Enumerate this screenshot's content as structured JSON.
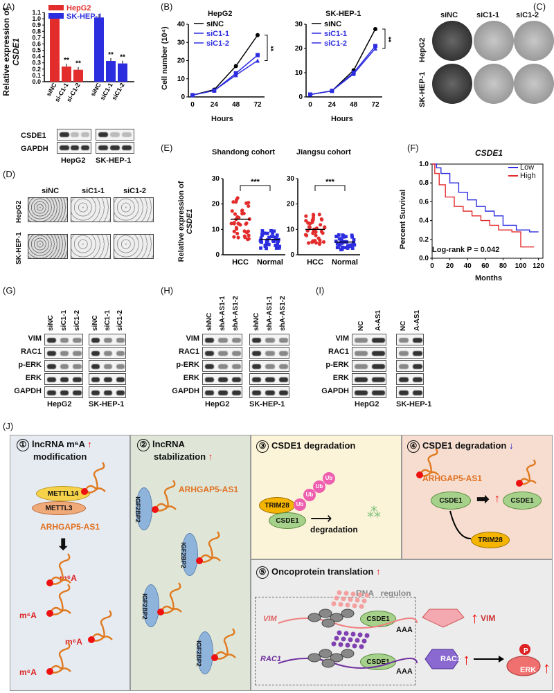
{
  "panelA": {
    "label": "(A)",
    "ylabel1": "Relative expression of",
    "ylabel2": "CSDE1",
    "legend": [
      {
        "name": "HepG2",
        "color": "#e32c2c"
      },
      {
        "name": "SK-HEP-1",
        "color": "#2d2de0"
      }
    ],
    "yticks": [
      "0.0",
      "0.1",
      "0.2",
      "0.3",
      "0.4",
      "0.5",
      "0.6",
      "0.7",
      "0.8",
      "0.9",
      "1.0",
      "1.1"
    ],
    "xlabels": [
      "siNC",
      "si-C1-1",
      "si-C1-2",
      "siNC",
      "siC1-1",
      "siC1-2"
    ],
    "sig": "**",
    "blot_rows": [
      "CSDE1",
      "GAPDH"
    ],
    "blot_groups": [
      "HepG2",
      "SK-HEP-1"
    ]
  },
  "chart_data": [
    {
      "type": "bar",
      "categories": [
        "siNC",
        "si-C1-1",
        "si-C1-2",
        "siNC",
        "siC1-1",
        "siC1-2"
      ],
      "series": [
        {
          "name": "HepG2",
          "values": [
            1.03,
            0.24,
            0.19,
            null,
            null,
            null
          ]
        },
        {
          "name": "SK-HEP-1",
          "values": [
            null,
            null,
            null,
            1.02,
            0.33,
            0.29
          ]
        }
      ],
      "ylim": [
        0,
        1.1
      ]
    },
    {
      "type": "line",
      "title": "HepG2",
      "xlabel": "Hours",
      "ylabel": "Cell number (10⁴)",
      "x": [
        0,
        24,
        48,
        72
      ],
      "series": [
        {
          "name": "siNC",
          "values": [
            1,
            4,
            17,
            34
          ]
        },
        {
          "name": "siC1-1",
          "values": [
            1,
            3.5,
            13,
            23
          ]
        },
        {
          "name": "siC1-2",
          "values": [
            1,
            3.5,
            12,
            20
          ]
        }
      ],
      "ylim": [
        0,
        40
      ]
    },
    {
      "type": "line",
      "title": "SK-HEP-1",
      "xlabel": "Hours",
      "x": [
        0,
        24,
        48,
        72
      ],
      "series": [
        {
          "name": "siNC",
          "values": [
            1,
            2.5,
            11,
            28
          ]
        },
        {
          "name": "siC1-1",
          "values": [
            1,
            2.5,
            10,
            21
          ]
        },
        {
          "name": "siC1-2",
          "values": [
            1,
            2.5,
            9.5,
            20
          ]
        }
      ],
      "ylim": [
        0,
        30
      ]
    },
    {
      "type": "scatter",
      "title": "Shandong cohort",
      "ylabel": "Relative expression of CSDE1",
      "categories": [
        "HCC",
        "Normal"
      ],
      "series": [
        {
          "name": "HCC",
          "values": [
            14
          ]
        },
        {
          "name": "Normal",
          "values": [
            6
          ]
        }
      ],
      "ylim": [
        0,
        30
      ]
    },
    {
      "type": "scatter",
      "title": "Jiangsu cohort",
      "categories": [
        "HCC",
        "Normal"
      ],
      "series": [
        {
          "name": "HCC",
          "values": [
            10
          ]
        },
        {
          "name": "Normal",
          "values": [
            5
          ]
        }
      ],
      "ylim": [
        0,
        30
      ]
    },
    {
      "type": "line",
      "title": "CSDE1",
      "xlabel": "Months",
      "ylabel": "Percent Survival",
      "series": [
        {
          "name": "Low"
        },
        {
          "name": "High"
        }
      ],
      "xlim": [
        0,
        120
      ],
      "ylim": [
        0,
        1.0
      ]
    }
  ],
  "panelB": {
    "label": "(B)",
    "t1": "HepG2",
    "t2": "SK-HEP-1",
    "ylabel": "Cell number (10⁴)",
    "xlabel": "Hours",
    "yticks1": [
      "0",
      "10",
      "20",
      "30",
      "40"
    ],
    "yticks2": [
      "0",
      "10",
      "20",
      "30"
    ],
    "xticks": [
      "0",
      "24",
      "48",
      "72"
    ],
    "legend": [
      "siNC",
      "siC1-1",
      "siC1-2"
    ],
    "sig": "**"
  },
  "panelC": {
    "label": "(C)",
    "cols": [
      "siNC",
      "siC1-1",
      "siC1-2"
    ],
    "rows": [
      "HepG2",
      "SK-HEP-1"
    ]
  },
  "panelD": {
    "label": "(D)",
    "cols": [
      "siNC",
      "siC1-1",
      "siC1-2"
    ],
    "rows": [
      "HepG2",
      "SK-HEP-1"
    ]
  },
  "panelE": {
    "label": "(E)",
    "t1": "Shandong cohort",
    "t2": "Jiangsu cohort",
    "ylabel1": "Relative expression of",
    "ylabel2": "CSDE1",
    "yticks": [
      "0",
      "10",
      "20",
      "30"
    ],
    "x": [
      "HCC",
      "Normal"
    ],
    "sig": "***"
  },
  "panelF": {
    "label": "(F)",
    "title": "CSDE1",
    "ylabel": "Percent Survival",
    "xlabel": "Months",
    "yticks": [
      "0.0",
      "0.2",
      "0.4",
      "0.6",
      "0.8",
      "1.0"
    ],
    "xticks": [
      "0",
      "20",
      "40",
      "60",
      "80",
      "100",
      "120"
    ],
    "legend": [
      {
        "name": "Low",
        "color": "#2d2de0"
      },
      {
        "name": "High",
        "color": "#e32c2c"
      }
    ],
    "stat": "Log-rank P = 0.042"
  },
  "panelG": {
    "label": "(G)",
    "rows": [
      "VIM",
      "RAC1",
      "p-ERK",
      "ERK",
      "GAPDH"
    ],
    "cols": [
      "siNC",
      "siC1-1",
      "siC1-2",
      "siNC",
      "siC1-1",
      "siC1-2"
    ],
    "groups": [
      "HepG2",
      "SK-HEP-1"
    ]
  },
  "panelH": {
    "label": "(H)",
    "rows": [
      "VIM",
      "RAC1",
      "p-ERK",
      "ERK",
      "GAPDH"
    ],
    "cols": [
      "shNC",
      "shA-AS1-1",
      "shA-AS1-2",
      "shNC",
      "shA-AS1-1",
      "shA-AS1-2"
    ],
    "groups": [
      "HepG2",
      "SK-HEP-1"
    ]
  },
  "panelI": {
    "label": "(I)",
    "rows": [
      "VIM",
      "RAC1",
      "p-ERK",
      "ERK",
      "GAPDH"
    ],
    "cols": [
      "NC",
      "A-AS1",
      "NC",
      "A-AS1"
    ],
    "groups": [
      "HepG2",
      "SK-HEP-1"
    ]
  },
  "panelJ": {
    "label": "(J)",
    "s1": {
      "num": "①",
      "title1": "lncRNA m⁶A",
      "title2": "modification",
      "arrow": "↑",
      "p1": "METTL14",
      "p2": "METTL3",
      "rna": "ARHGAP5-AS1",
      "mark": "m⁶A"
    },
    "s2": {
      "num": "②",
      "title1": "lncRNA",
      "title2": "stabilization",
      "arrow": "↑",
      "protein": "IGF2BP2",
      "rna": "ARHGAP5-AS1"
    },
    "s3": {
      "num": "③",
      "title": "CSDE1 degradation",
      "p1": "TRIM28",
      "p2": "CSDE1",
      "ub": "Ub",
      "text": "degradation"
    },
    "s4": {
      "num": "④",
      "title": "CSDE1 degradation",
      "arrow": "↓",
      "rna": "ARHGAP5-AS1",
      "p1": "CSDE1",
      "p2": "CSDE1",
      "p3": "TRIM28"
    },
    "s5": {
      "num": "⑤",
      "title": "Oncoprotein translation",
      "arrow": "↑",
      "regulon": "RNA   regulon",
      "g1": "VIM",
      "g2": "RAC1",
      "p": "CSDE1",
      "aaa": "AAA",
      "o1": "VIM",
      "o2": "RAC1",
      "o3": "ERK",
      "phos": "P"
    }
  }
}
